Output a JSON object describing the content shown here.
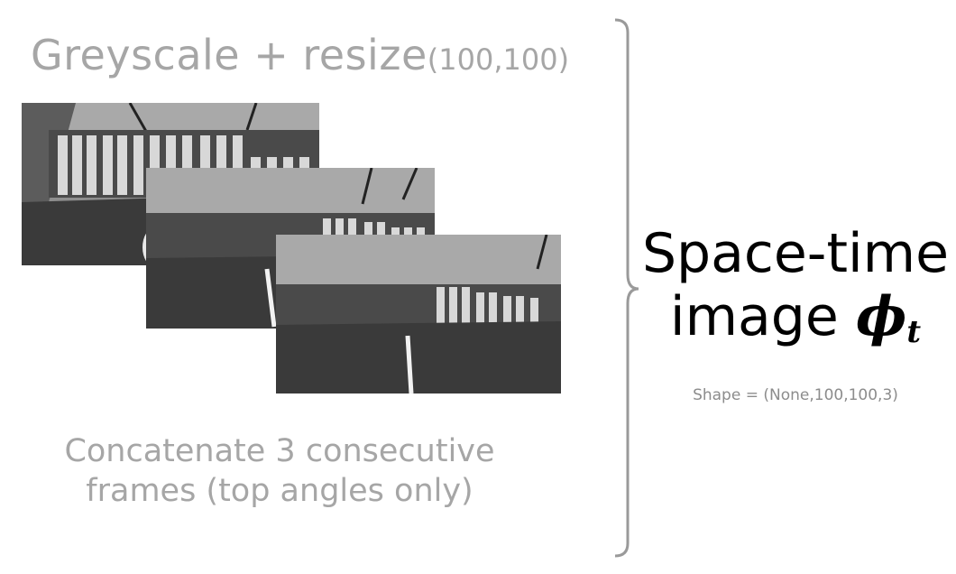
{
  "title": {
    "main": "Greyscale + resize",
    "params": "(100,100)"
  },
  "caption": {
    "line1": "Concatenate 3 consecutive",
    "line2": "frames (top angles only)"
  },
  "result": {
    "line1": "Space-time",
    "line2_text": "image ",
    "symbol": "ϕ",
    "subscript": "t"
  },
  "shape_label": "Shape = (None,100,100,3)",
  "frames": [
    {
      "name": "frame-1",
      "content": "overhead greyscale view of xylophone bars with mallet"
    },
    {
      "name": "frame-2",
      "content": "overhead greyscale view of xylophone bars with mallet"
    },
    {
      "name": "frame-3",
      "content": "overhead greyscale view of xylophone bars with mallet"
    }
  ],
  "colors": {
    "title_grey": "#a6a6a6",
    "brace_grey": "#9a9a9a",
    "shape_grey": "#8c8c8c",
    "result_text": "#000000"
  }
}
